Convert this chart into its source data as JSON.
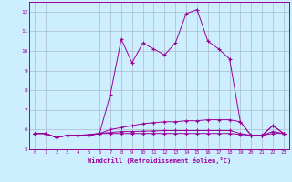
{
  "xlabel": "Windchill (Refroidissement éolien,°C)",
  "x_hours": [
    0,
    1,
    2,
    3,
    4,
    5,
    6,
    7,
    8,
    9,
    10,
    11,
    12,
    13,
    14,
    15,
    16,
    17,
    18,
    19,
    20,
    21,
    22,
    23
  ],
  "line1_y": [
    5.8,
    5.8,
    5.6,
    5.7,
    5.7,
    5.7,
    5.8,
    7.8,
    10.6,
    9.4,
    10.4,
    10.1,
    9.8,
    10.4,
    11.9,
    12.1,
    10.5,
    10.1,
    9.6,
    6.4,
    5.7,
    5.7,
    6.2,
    5.8
  ],
  "line2_y": [
    5.8,
    5.8,
    5.6,
    5.7,
    5.7,
    5.75,
    5.8,
    6.0,
    6.1,
    6.2,
    6.3,
    6.35,
    6.4,
    6.4,
    6.45,
    6.45,
    6.5,
    6.5,
    6.5,
    6.4,
    5.7,
    5.7,
    6.2,
    5.8
  ],
  "line3_y": [
    5.8,
    5.8,
    5.6,
    5.7,
    5.7,
    5.7,
    5.8,
    5.85,
    5.9,
    5.9,
    5.92,
    5.93,
    5.95,
    5.95,
    5.95,
    5.95,
    5.95,
    5.95,
    5.95,
    5.8,
    5.7,
    5.7,
    5.9,
    5.8
  ],
  "line4_y": [
    5.8,
    5.8,
    5.6,
    5.7,
    5.7,
    5.7,
    5.8,
    5.8,
    5.8,
    5.8,
    5.8,
    5.8,
    5.8,
    5.8,
    5.8,
    5.8,
    5.8,
    5.8,
    5.8,
    5.75,
    5.7,
    5.7,
    5.8,
    5.8
  ],
  "line_color": "#990099",
  "bg_color": "#cceeff",
  "grid_color": "#aabbcc",
  "ylim": [
    5.0,
    12.5
  ],
  "yticks": [
    5,
    6,
    7,
    8,
    9,
    10,
    11,
    12
  ],
  "xlim": [
    -0.5,
    23.5
  ],
  "xticks": [
    0,
    1,
    2,
    3,
    4,
    5,
    6,
    7,
    8,
    9,
    10,
    11,
    12,
    13,
    14,
    15,
    16,
    17,
    18,
    19,
    20,
    21,
    22,
    23
  ]
}
